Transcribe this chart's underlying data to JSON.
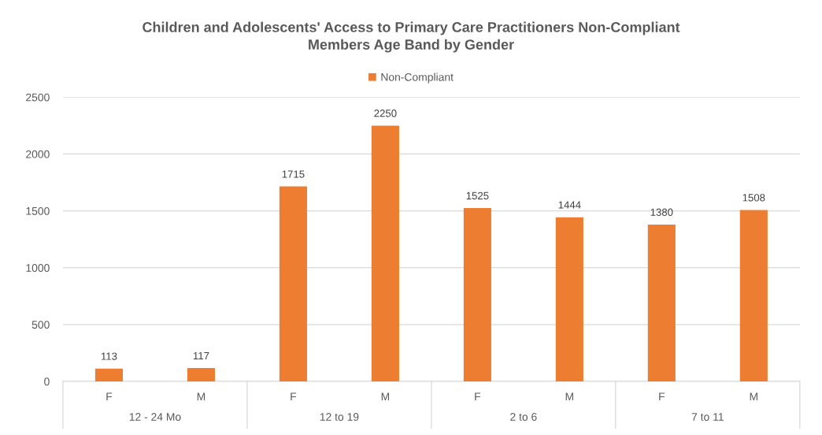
{
  "chart_data": {
    "type": "bar",
    "title": "Children and Adolescents' Access to Primary Care Practitioners Non-Compliant\nMembers Age Band by Gender",
    "categories": [
      "F",
      "M",
      "F",
      "M",
      "F",
      "M",
      "F",
      "M"
    ],
    "series": [
      {
        "name": "Non-Compliant",
        "color": "#ed7d31",
        "values": [
          113,
          117,
          1715,
          2250,
          1525,
          1444,
          1380,
          1508
        ]
      }
    ],
    "annotations": [
      "12 - 24 Mo",
      "12 to 19",
      "2 to 6",
      "7 to 11"
    ],
    "ylim": [
      0,
      2500
    ],
    "yticks": [
      0,
      500,
      1000,
      1500,
      2000,
      2500
    ],
    "grid": "y",
    "legend": "top",
    "data_labels": true
  }
}
